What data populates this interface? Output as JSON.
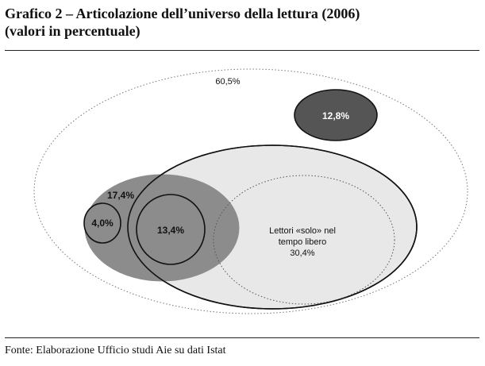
{
  "title": {
    "line1": "Grafico 2 – Articolazione dell’universo della lettura (2006)",
    "line2": "(valori in percentuale)"
  },
  "diagram": {
    "outer_label": "60,5%",
    "top_right_label": "12,8%",
    "left_group_label": "17,4%",
    "small_circle_label": "4,0%",
    "overlap_circle_label": "13,4%",
    "free_time_label_line1": "Lettori «solo» nel",
    "free_time_label_line2": "tempo libero",
    "free_time_value": "30,4%"
  },
  "source": "Fonte: Elaborazione Ufficio studi Aie su dati Istat",
  "colors": {
    "dark_fill": "#555555",
    "medium_fill": "#8c8c8c",
    "light_fill": "#e8e8e8",
    "stroke": "#111111"
  }
}
